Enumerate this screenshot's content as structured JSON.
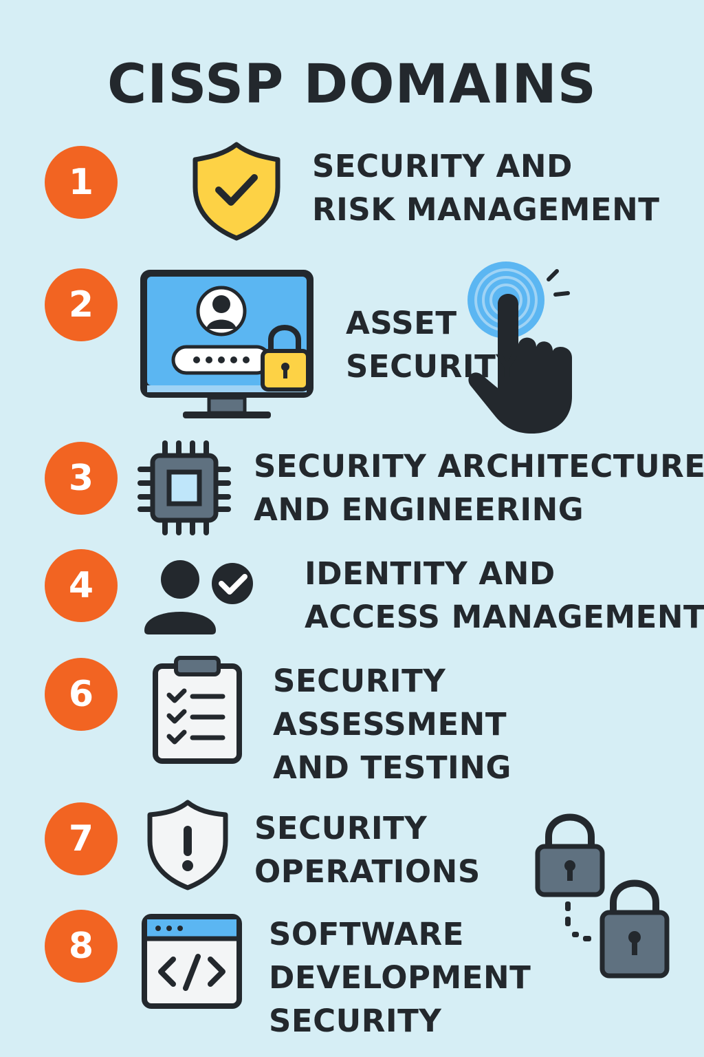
{
  "title": "CISSP DOMAINS",
  "accent_color": "#f26422",
  "text_color": "#23282d",
  "domains": [
    {
      "number": "1",
      "lines": [
        "SECURITY AND",
        "RISK MANAGEMENT"
      ],
      "icon": "shield-check-icon"
    },
    {
      "number": "2",
      "lines": [
        "ASSET",
        "SECURITY"
      ],
      "icon": "monitor-login-icon"
    },
    {
      "number": "3",
      "lines": [
        "SECURITY ARCHITECTURE",
        "AND ENGINEERING"
      ],
      "icon": "chip-icon"
    },
    {
      "number": "4",
      "lines": [
        "IDENTITY AND",
        "ACCESS MANAGEMENT"
      ],
      "icon": "user-verified-icon"
    },
    {
      "number": "6",
      "lines": [
        "SECURITY",
        "ASSESSMENT",
        "AND TESTING"
      ],
      "icon": "checklist-icon"
    },
    {
      "number": "7",
      "lines": [
        "SECURITY",
        "OPERATIONS"
      ],
      "icon": "shield-alert-icon"
    },
    {
      "number": "8",
      "lines": [
        "SOFTWARE",
        "DEVELOPMENT",
        "SECURITY"
      ],
      "icon": "code-window-icon"
    }
  ],
  "decorations": [
    "fingerprint-touch-icon",
    "padlock-icon",
    "padlock-icon"
  ]
}
